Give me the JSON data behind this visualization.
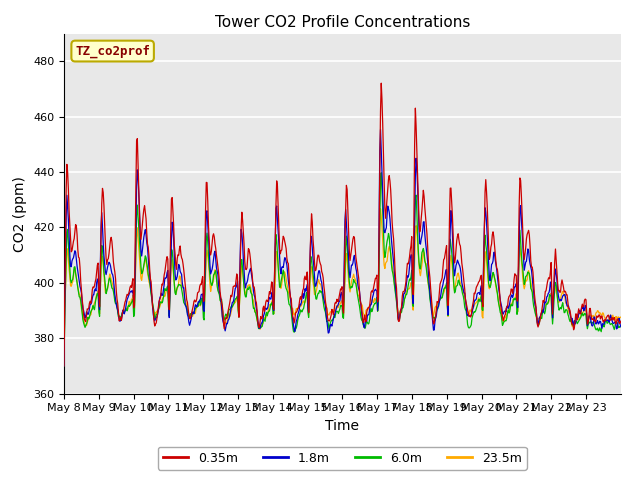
{
  "title": "Tower CO2 Profile Concentrations",
  "xlabel": "Time",
  "ylabel": "CO2 (ppm)",
  "ylim": [
    360,
    490
  ],
  "yticks": [
    360,
    380,
    400,
    420,
    440,
    460,
    480
  ],
  "x_labels": [
    "May 8",
    "May 9",
    "May 10",
    "May 11",
    "May 12",
    "May 13",
    "May 14",
    "May 15",
    "May 16",
    "May 17",
    "May 18",
    "May 19",
    "May 20",
    "May 21",
    "May 22",
    "May 23"
  ],
  "colors": {
    "0.35m": "#cc0000",
    "1.8m": "#0000cc",
    "6.0m": "#00bb00",
    "23.5m": "#ffaa00"
  },
  "legend_label": "TZ_co2prof",
  "legend_bg": "#ffffcc",
  "legend_border": "#bbaa00",
  "background_color": "#e8e8e8",
  "title_fontsize": 11,
  "axis_label_fontsize": 10,
  "tick_fontsize": 8,
  "legend_fontsize": 9,
  "figsize": [
    6.4,
    4.8
  ],
  "dpi": 100
}
